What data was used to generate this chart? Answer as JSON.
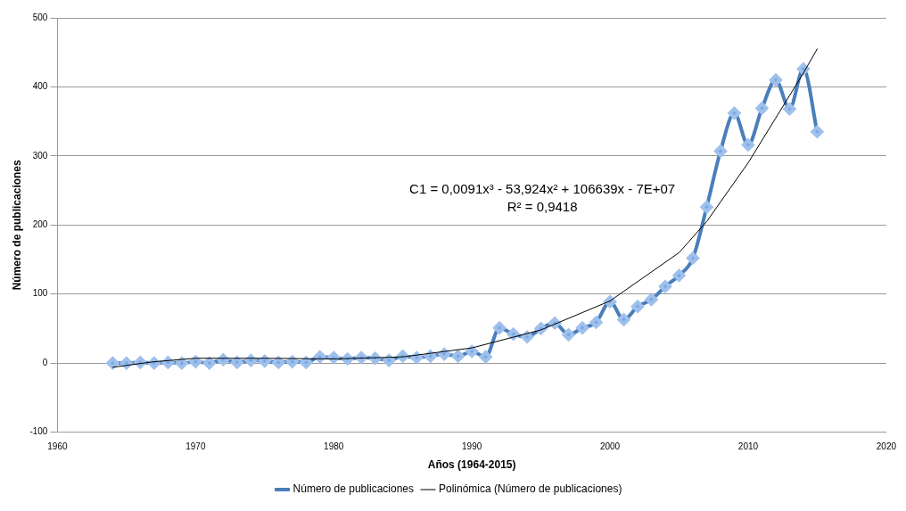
{
  "chart_data": {
    "type": "line",
    "xlabel": "Años (1964-2015)",
    "ylabel": "Número de publicaciones",
    "x": [
      1964,
      1965,
      1966,
      1967,
      1968,
      1969,
      1970,
      1971,
      1972,
      1973,
      1974,
      1975,
      1976,
      1977,
      1978,
      1979,
      1980,
      1981,
      1982,
      1983,
      1984,
      1985,
      1986,
      1987,
      1988,
      1989,
      1990,
      1991,
      1992,
      1993,
      1994,
      1995,
      1996,
      1997,
      1998,
      1999,
      2000,
      2001,
      2002,
      2003,
      2004,
      2005,
      2006,
      2007,
      2008,
      2009,
      2010,
      2011,
      2012,
      2013,
      2014,
      2015
    ],
    "series": [
      {
        "name": "Número de publicaciones",
        "color": "#4a7ebb",
        "marker": "diamond",
        "values": [
          0,
          0,
          1,
          0,
          1,
          0,
          2,
          0,
          5,
          1,
          4,
          3,
          1,
          2,
          1,
          9,
          8,
          6,
          8,
          7,
          4,
          10,
          8,
          10,
          13,
          10,
          17,
          9,
          51,
          42,
          38,
          50,
          58,
          41,
          51,
          59,
          89,
          63,
          82,
          92,
          111,
          127,
          152,
          226,
          307,
          362,
          316,
          369,
          410,
          368,
          426,
          335
        ]
      },
      {
        "name": "Polinómica (Número de publicaciones)",
        "type": "line",
        "color": "#000000",
        "marker": "none",
        "x": [
          1964,
          1967,
          1970,
          1975,
          1980,
          1985,
          1990,
          1995,
          2000,
          2005,
          2007,
          2010,
          2012,
          2014,
          2015
        ],
        "values": [
          -6,
          2,
          7,
          7,
          6,
          9,
          22,
          48,
          90,
          160,
          205,
          290,
          355,
          420,
          455
        ]
      }
    ],
    "xlim": [
      1960,
      2020
    ],
    "xticks": [
      1960,
      1970,
      1980,
      1990,
      2000,
      2010,
      2020
    ],
    "ylim": [
      -100,
      500
    ],
    "yticks": [
      -100,
      0,
      100,
      200,
      300,
      400,
      500
    ],
    "grid": "y",
    "legend": "bottom",
    "line_style": "solid",
    "annotations": [
      "C1 = 0,0091x³ - 53,924x² + 106639x - 7E+07",
      "R² = 0,9418"
    ]
  }
}
